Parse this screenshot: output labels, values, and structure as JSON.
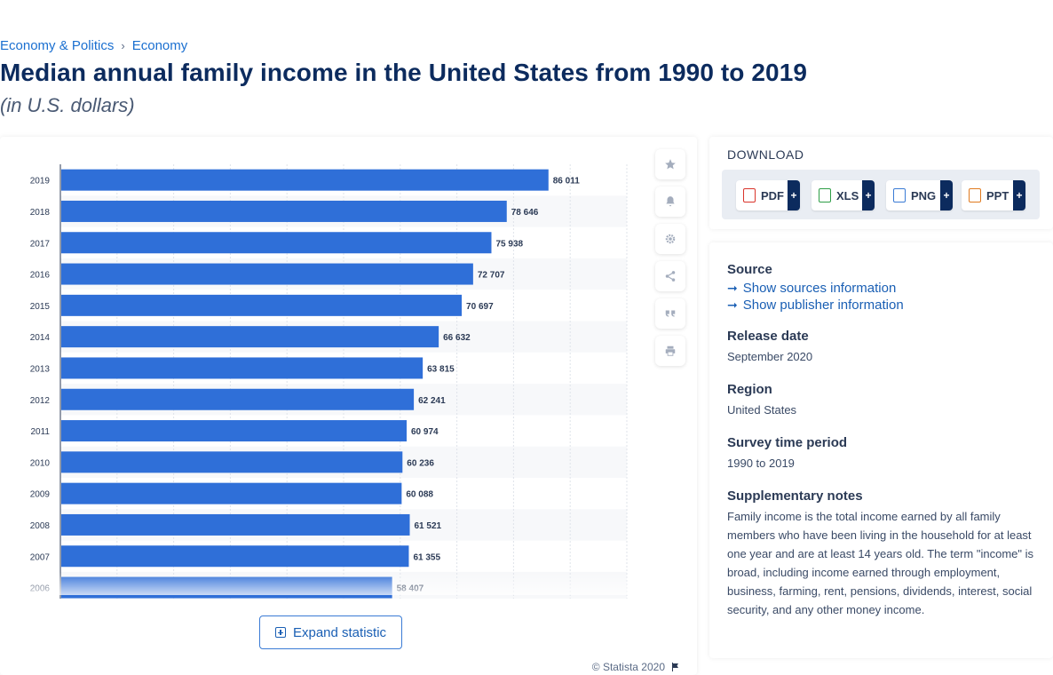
{
  "breadcrumb": {
    "first": "Economy & Politics",
    "separator": "›",
    "second": "Economy"
  },
  "title": "Median annual family income in the United States from 1990 to 2019",
  "subtitle": "(in U.S. dollars)",
  "chart_data": {
    "type": "bar",
    "orientation": "horizontal",
    "categories": [
      "2019",
      "2018",
      "2017",
      "2016",
      "2015",
      "2014",
      "2013",
      "2012",
      "2011",
      "2010",
      "2009",
      "2008",
      "2007",
      "2006"
    ],
    "values": [
      86011,
      78646,
      75938,
      72707,
      70697,
      66632,
      63815,
      62241,
      60974,
      60236,
      60088,
      61521,
      61355,
      58407
    ],
    "value_labels": [
      "86 011",
      "78 646",
      "75 938",
      "72 707",
      "70 697",
      "66 632",
      "63 815",
      "62 241",
      "60 974",
      "60 236",
      "60 088",
      "61 521",
      "61 355",
      "58 407"
    ],
    "xlim": [
      0,
      100000
    ],
    "grid": true,
    "bar_color": "#2f6fd8"
  },
  "chart": {
    "expand_label": "Expand statistic",
    "copyright": "© Statista 2020"
  },
  "tools": [
    "star-icon",
    "bell-icon",
    "gear-icon",
    "share-icon",
    "quote-icon",
    "print-icon"
  ],
  "download": {
    "heading": "DOWNLOAD",
    "buttons": [
      {
        "label": "PDF",
        "color": "#d9342b"
      },
      {
        "label": "XLS",
        "color": "#2e9e47"
      },
      {
        "label": "PNG",
        "color": "#3a7bd5"
      },
      {
        "label": "PPT",
        "color": "#e07a1f"
      }
    ],
    "plus": "+"
  },
  "info": {
    "source_label": "Source",
    "show_sources": "Show sources information",
    "show_publisher": "Show publisher information",
    "release_label": "Release date",
    "release_value": "September 2020",
    "region_label": "Region",
    "region_value": "United States",
    "survey_label": "Survey time period",
    "survey_value": "1990 to 2019",
    "notes_label": "Supplementary notes",
    "notes_value": "Family income is the total income earned by all family members who have been living in the household for at least one year and are at least 14 years old. The term \"income\" is broad, including income earned through employment, business, farming, rent, pensions, dividends, interest, social security, and any other money income."
  }
}
